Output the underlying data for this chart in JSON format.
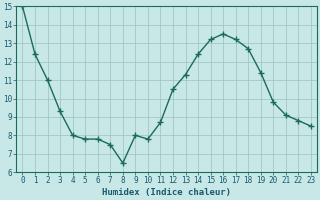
{
  "x": [
    0,
    1,
    2,
    3,
    4,
    5,
    6,
    7,
    8,
    9,
    10,
    11,
    12,
    13,
    14,
    15,
    16,
    17,
    18,
    19,
    20,
    21,
    22,
    23
  ],
  "y": [
    15,
    12.4,
    11.0,
    9.3,
    8.0,
    7.8,
    7.8,
    7.5,
    6.5,
    8.0,
    7.8,
    8.7,
    10.5,
    11.3,
    12.4,
    13.2,
    13.5,
    13.2,
    12.7,
    11.4,
    9.8,
    9.1,
    8.8,
    8.5
  ],
  "line_color": "#1a6b5a",
  "marker": "+",
  "marker_size": 4,
  "marker_lw": 1.0,
  "line_width": 1.0,
  "bg_color": "#c8e8e8",
  "grid_color": "#9bbfbf",
  "xlabel": "Humidex (Indice chaleur)",
  "ylim": [
    6,
    15
  ],
  "xlim": [
    -0.5,
    23.5
  ],
  "yticks": [
    6,
    7,
    8,
    9,
    10,
    11,
    12,
    13,
    14,
    15
  ],
  "xticks": [
    0,
    1,
    2,
    3,
    4,
    5,
    6,
    7,
    8,
    9,
    10,
    11,
    12,
    13,
    14,
    15,
    16,
    17,
    18,
    19,
    20,
    21,
    22,
    23
  ],
  "font_color": "#1a5a6b",
  "tick_fontsize": 5.5,
  "label_fontsize": 6.5
}
